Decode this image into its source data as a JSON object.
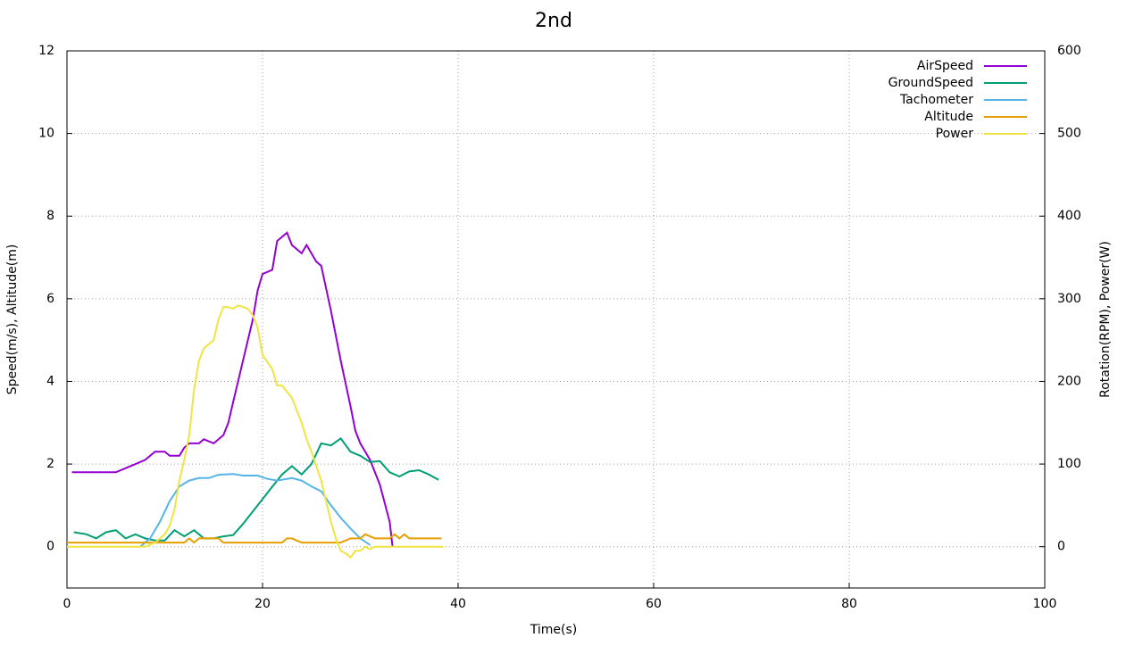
{
  "chart_data": {
    "type": "line",
    "title": "2nd",
    "x_label": "Time(s)",
    "y_label": "Speed(m/s), Altitude(m)",
    "y2_label": "Rotation(RPM), Power(W)",
    "xlim": [
      0,
      100
    ],
    "xticks": [
      0,
      20,
      40,
      60,
      80,
      100
    ],
    "ylim": [
      -1,
      12
    ],
    "yticks": [
      0,
      2,
      4,
      6,
      8,
      10,
      12
    ],
    "y2lim": [
      -50,
      600
    ],
    "y2ticks": [
      0,
      100,
      200,
      300,
      400,
      500,
      600
    ],
    "grid": true,
    "legend": "top-right",
    "series": [
      {
        "name": "AirSpeed",
        "color": "#9400d3",
        "x": [
          0.5,
          5,
          6,
          7,
          8,
          9,
          10,
          10.5,
          11.5,
          12,
          12.5,
          13.5,
          14,
          15,
          16,
          16.5,
          17,
          18,
          19,
          19.5,
          20,
          21,
          21.5,
          22.5,
          23,
          24,
          24.5,
          25.5,
          26,
          27,
          28,
          29,
          29.5,
          30,
          31,
          32,
          33,
          33.3
        ],
        "values": [
          1.8,
          1.8,
          1.9,
          2.0,
          2.1,
          2.3,
          2.3,
          2.2,
          2.2,
          2.4,
          2.5,
          2.5,
          2.6,
          2.5,
          2.7,
          3.0,
          3.5,
          4.5,
          5.5,
          6.2,
          6.6,
          6.7,
          7.4,
          7.6,
          7.3,
          7.1,
          7.3,
          6.9,
          6.8,
          5.7,
          4.5,
          3.4,
          2.8,
          2.5,
          2.1,
          1.5,
          0.6,
          0
        ]
      },
      {
        "name": "GroundSpeed",
        "color": "#009e73",
        "x": [
          0.7,
          2,
          3,
          4,
          5,
          6,
          7,
          8,
          9,
          10,
          11,
          12,
          13,
          14,
          15,
          16,
          17,
          18,
          19,
          20,
          21,
          22,
          23,
          24,
          25,
          26,
          27,
          28,
          29,
          30,
          31,
          32,
          33,
          34,
          35,
          36,
          37,
          38
        ],
        "values": [
          0.35,
          0.3,
          0.2,
          0.35,
          0.4,
          0.2,
          0.3,
          0.2,
          0.15,
          0.15,
          0.4,
          0.25,
          0.4,
          0.2,
          0.2,
          0.25,
          0.28,
          0.55,
          0.85,
          1.15,
          1.45,
          1.75,
          1.95,
          1.75,
          2.0,
          2.5,
          2.45,
          2.62,
          2.3,
          2.2,
          2.05,
          2.07,
          1.8,
          1.7,
          1.82,
          1.85,
          1.75,
          1.62
        ]
      },
      {
        "name": "Tachometer",
        "color": "#56b4e9",
        "axis": "y2",
        "x": [
          7.5,
          8.5,
          9.5,
          10.5,
          11.5,
          12.5,
          13.5,
          14.5,
          15.5,
          17,
          18,
          19.5,
          20.5,
          21.5,
          23,
          24,
          25,
          26,
          27,
          28,
          29,
          30,
          31
        ],
        "values": [
          0,
          10,
          30,
          55,
          73,
          80,
          83,
          83,
          87,
          88,
          86,
          86,
          82,
          80,
          83,
          80,
          73,
          67,
          50,
          35,
          22,
          10,
          2
        ]
      },
      {
        "name": "Altitude",
        "color": "#e69f00",
        "x": [
          0,
          12,
          12.5,
          13,
          13.5,
          15.5,
          16,
          22,
          22.5,
          23,
          24,
          28,
          29,
          30,
          30.5,
          31.5,
          33,
          33.5,
          34,
          34.5,
          35,
          38.3
        ],
        "values": [
          0.1,
          0.1,
          0.2,
          0.1,
          0.2,
          0.2,
          0.1,
          0.1,
          0.2,
          0.2,
          0.1,
          0.1,
          0.2,
          0.2,
          0.3,
          0.2,
          0.2,
          0.3,
          0.2,
          0.3,
          0.2,
          0.2
        ]
      },
      {
        "name": "Power",
        "color": "#f0e442",
        "axis": "y2",
        "x": [
          0,
          8,
          9,
          10,
          10.5,
          11,
          11.5,
          12,
          12.5,
          13,
          13.5,
          14,
          15,
          15.5,
          16,
          16.5,
          17,
          17.5,
          18,
          18.5,
          19,
          19.5,
          20,
          21,
          21.5,
          22,
          23,
          24,
          24.5,
          25,
          26,
          26.5,
          27,
          27.5,
          28,
          28.5,
          29,
          29.5,
          30,
          30.5,
          31,
          31.5,
          38.5
        ],
        "values": [
          0,
          0,
          5,
          15,
          25,
          45,
          80,
          105,
          135,
          190,
          225,
          240,
          250,
          275,
          290,
          290,
          288,
          292,
          290,
          288,
          280,
          265,
          232,
          215,
          195,
          195,
          180,
          150,
          130,
          115,
          80,
          55,
          30,
          10,
          -5,
          -8,
          -13,
          -5,
          -5,
          0,
          -3,
          0,
          0
        ]
      }
    ]
  }
}
